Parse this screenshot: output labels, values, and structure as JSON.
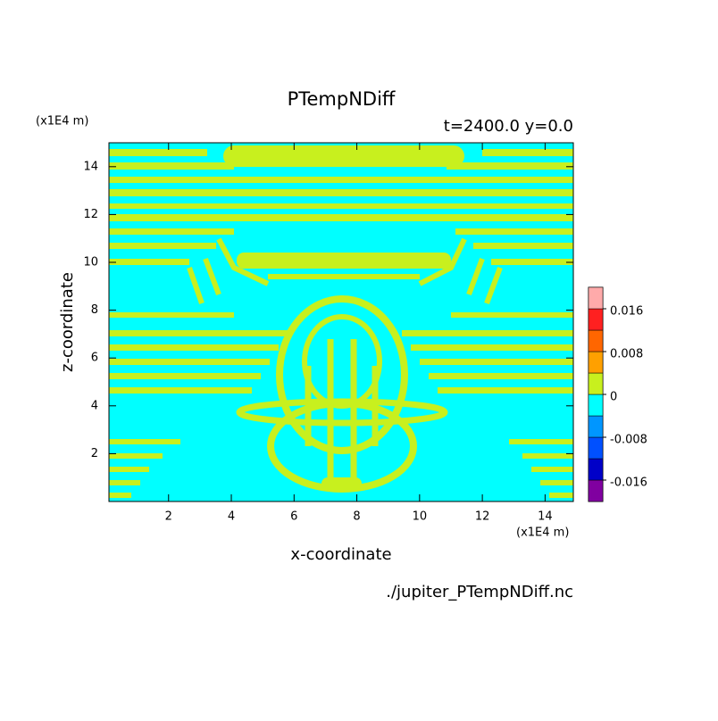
{
  "chart_data": {
    "type": "contour",
    "title": "PTempNDiff",
    "subtitle": "t=2400.0 y=0.0",
    "x_label": "x-coordinate",
    "y_label": "z-coordinate",
    "x_unit": "(x1E4 m)",
    "y_unit": "(x1E4 m)",
    "source": "./jupiter_PTempNDiff.nc",
    "xlim": [
      0.1,
      14.9
    ],
    "ylim": [
      0,
      15
    ],
    "xticks": [
      2,
      4,
      6,
      8,
      10,
      12,
      14
    ],
    "yticks": [
      2,
      4,
      6,
      8,
      10,
      12,
      14
    ],
    "colorbar": {
      "lim": [
        -0.02,
        0.02
      ],
      "levels": [
        -0.02,
        -0.016,
        -0.012,
        -0.008,
        -0.004,
        0,
        0.004,
        0.008,
        0.012,
        0.016,
        0.02
      ],
      "colors": [
        "#8000a0",
        "#0000c8",
        "#0050ff",
        "#0096ff",
        "#00ffff",
        "#c8f01e",
        "#ffa000",
        "#ff6600",
        "#ff2020",
        "#ffaaaa"
      ],
      "ticks": [
        0.016,
        0.008,
        0,
        -0.008,
        -0.016
      ]
    }
  }
}
